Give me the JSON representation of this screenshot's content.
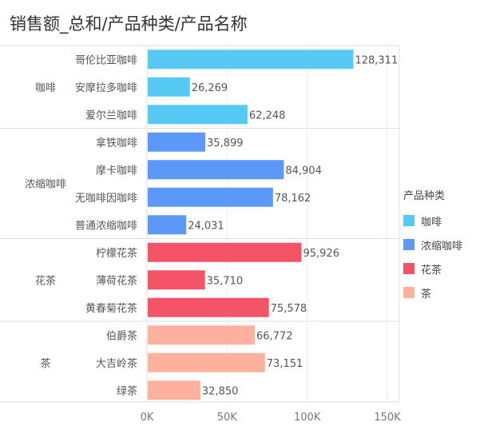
{
  "title": "销售额_总和/产品种类/产品名称",
  "chart_data": {
    "type": "bar",
    "orientation": "horizontal",
    "title": "销售额_总和/产品种类/产品名称",
    "xlim": [
      0,
      150000
    ],
    "xticks": [
      "0K",
      "50K",
      "100K",
      "150K"
    ],
    "xtick_values": [
      0,
      50000,
      100000,
      150000
    ],
    "grid": true,
    "legend_title": "产品种类",
    "legend_position": "right",
    "groups": [
      {
        "name": "咖啡",
        "color": "#56CAF5",
        "items": [
          {
            "name": "哥伦比亚咖啡",
            "value": 128311,
            "label": "128,311"
          },
          {
            "name": "安摩拉多咖啡",
            "value": 26269,
            "label": "26,269"
          },
          {
            "name": "爱尔兰咖啡",
            "value": 62248,
            "label": "62,248"
          }
        ]
      },
      {
        "name": "浓缩咖啡",
        "color": "#5B98F7",
        "items": [
          {
            "name": "拿铁咖啡",
            "value": 35899,
            "label": "35,899"
          },
          {
            "name": "摩卡咖啡",
            "value": 84904,
            "label": "84,904"
          },
          {
            "name": "无咖啡因咖啡",
            "value": 78162,
            "label": "78,162"
          },
          {
            "name": "普通浓缩咖啡",
            "value": 24031,
            "label": "24,031"
          }
        ]
      },
      {
        "name": "花茶",
        "color": "#F55366",
        "items": [
          {
            "name": "柠檬花茶",
            "value": 95926,
            "label": "95,926"
          },
          {
            "name": "薄荷花茶",
            "value": 35710,
            "label": "35,710"
          },
          {
            "name": "黄春菊花茶",
            "value": 75578,
            "label": "75,578"
          }
        ]
      },
      {
        "name": "茶",
        "color": "#FFB19D",
        "items": [
          {
            "name": "伯爵茶",
            "value": 66772,
            "label": "66,772"
          },
          {
            "name": "大吉岭茶",
            "value": 73151,
            "label": "73,151"
          },
          {
            "name": "绿茶",
            "value": 32850,
            "label": "32,850"
          }
        ]
      }
    ]
  }
}
